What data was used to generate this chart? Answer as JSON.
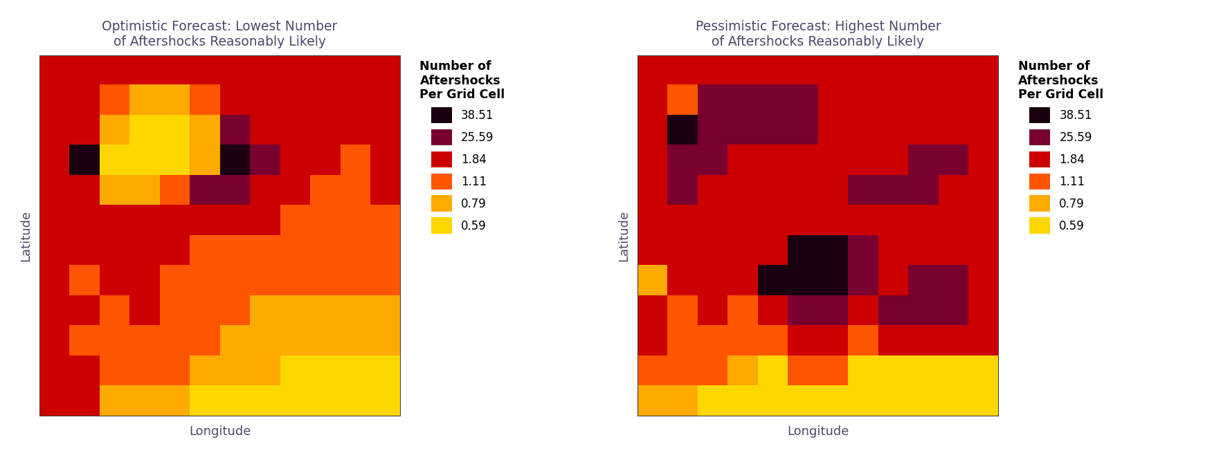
{
  "title1": "Optimistic Forecast: Lowest Number\nof Aftershocks Reasonably Likely",
  "title2": "Pessimistic Forecast: Highest Number\nof Aftershocks Reasonably Likely",
  "xlabel": "Longitude",
  "ylabel": "Latitude",
  "legend_title": "Number of\nAftershocks\nPer Grid Cell",
  "legend_values": [
    38.51,
    25.59,
    1.84,
    1.11,
    0.79,
    0.59
  ],
  "legend_colors": [
    "#1a0010",
    "#6b0030",
    "#cc0000",
    "#ff4400",
    "#ff8c00",
    "#ffd700"
  ],
  "title_color": "#4a4a6a",
  "axis_label_color": "#4a4a6a",
  "vmin_log": -0.229,
  "vmax_log": 1.586,
  "grid1": [
    [
      1.84,
      1.84,
      1.84,
      1.84,
      1.84,
      1.84,
      1.84,
      1.84,
      1.84,
      1.84,
      1.84,
      1.84
    ],
    [
      1.84,
      1.84,
      1.11,
      0.79,
      0.79,
      1.11,
      1.84,
      1.84,
      1.84,
      1.84,
      1.84,
      1.84
    ],
    [
      1.84,
      1.84,
      0.79,
      0.59,
      0.59,
      0.79,
      25.59,
      1.84,
      1.84,
      1.84,
      1.84,
      1.84
    ],
    [
      1.84,
      38.51,
      0.59,
      0.59,
      0.59,
      0.79,
      38.51,
      25.59,
      1.84,
      1.84,
      1.11,
      1.84
    ],
    [
      1.84,
      1.84,
      0.79,
      0.79,
      1.11,
      25.59,
      25.59,
      1.84,
      1.84,
      1.11,
      1.11,
      1.84
    ],
    [
      1.84,
      1.84,
      1.84,
      1.84,
      1.84,
      1.84,
      1.84,
      1.84,
      1.11,
      1.11,
      1.11,
      1.11
    ],
    [
      1.84,
      1.84,
      1.84,
      1.84,
      1.84,
      1.11,
      1.11,
      1.11,
      1.11,
      1.11,
      1.11,
      1.11
    ],
    [
      1.84,
      1.11,
      1.84,
      1.84,
      1.11,
      1.11,
      1.11,
      1.11,
      1.11,
      1.11,
      1.11,
      1.11
    ],
    [
      1.84,
      1.84,
      1.11,
      1.84,
      1.11,
      1.11,
      1.11,
      0.79,
      0.79,
      0.79,
      0.79,
      0.79
    ],
    [
      1.84,
      1.11,
      1.11,
      1.11,
      1.11,
      1.11,
      0.79,
      0.79,
      0.79,
      0.79,
      0.79,
      0.79
    ],
    [
      1.84,
      1.84,
      1.11,
      1.11,
      1.11,
      0.79,
      0.79,
      0.79,
      0.59,
      0.59,
      0.59,
      0.59
    ],
    [
      1.84,
      1.84,
      0.79,
      0.79,
      0.79,
      0.59,
      0.59,
      0.59,
      0.59,
      0.59,
      0.59,
      0.59
    ]
  ],
  "grid2": [
    [
      1.84,
      1.84,
      1.84,
      1.84,
      1.84,
      1.84,
      1.84,
      1.84,
      1.84,
      1.84,
      1.84,
      1.84
    ],
    [
      1.84,
      1.11,
      25.59,
      25.59,
      25.59,
      25.59,
      1.84,
      1.84,
      1.84,
      1.84,
      1.84,
      1.84
    ],
    [
      1.84,
      38.51,
      25.59,
      25.59,
      25.59,
      25.59,
      1.84,
      1.84,
      1.84,
      1.84,
      1.84,
      1.84
    ],
    [
      1.84,
      25.59,
      25.59,
      1.84,
      1.84,
      1.84,
      1.84,
      1.84,
      1.84,
      25.59,
      25.59,
      1.84
    ],
    [
      1.84,
      25.59,
      1.84,
      1.84,
      1.84,
      1.84,
      1.84,
      25.59,
      25.59,
      25.59,
      1.84,
      1.84
    ],
    [
      1.84,
      1.84,
      1.84,
      1.84,
      1.84,
      1.84,
      1.84,
      1.84,
      1.84,
      1.84,
      1.84,
      1.84
    ],
    [
      1.84,
      1.84,
      1.84,
      1.84,
      1.84,
      38.51,
      38.51,
      25.59,
      1.84,
      1.84,
      1.84,
      1.84
    ],
    [
      0.79,
      1.84,
      1.84,
      1.84,
      38.51,
      38.51,
      38.51,
      25.59,
      1.84,
      25.59,
      25.59,
      1.84
    ],
    [
      1.84,
      1.11,
      1.84,
      1.11,
      1.84,
      25.59,
      25.59,
      1.84,
      25.59,
      25.59,
      25.59,
      1.84
    ],
    [
      1.84,
      1.11,
      1.11,
      1.11,
      1.11,
      1.84,
      1.84,
      1.11,
      1.84,
      1.84,
      1.84,
      1.84
    ],
    [
      1.11,
      1.11,
      1.11,
      0.79,
      0.59,
      1.11,
      1.11,
      0.59,
      0.59,
      0.59,
      0.59,
      0.59
    ],
    [
      0.79,
      0.79,
      0.59,
      0.59,
      0.59,
      0.59,
      0.59,
      0.59,
      0.59,
      0.59,
      0.59,
      0.59
    ]
  ]
}
